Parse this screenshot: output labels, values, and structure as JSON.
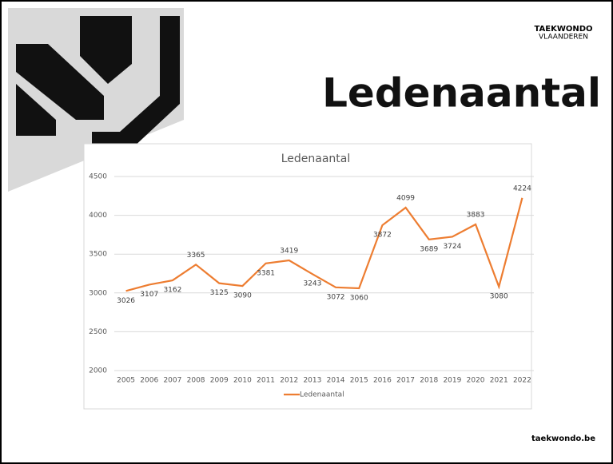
{
  "brand": {
    "line1": "TAEKWONDO",
    "line2": "VLAANDEREN"
  },
  "slide_title": "Ledenaantal",
  "footer": "taekwondo.be",
  "chart_data": {
    "type": "line",
    "title": "Ledenaantal",
    "categories": [
      "2005",
      "2006",
      "2007",
      "2008",
      "2009",
      "2010",
      "2011",
      "2012",
      "2013",
      "2014",
      "2015",
      "2016",
      "2017",
      "2018",
      "2019",
      "2020",
      "2021",
      "2022"
    ],
    "series": [
      {
        "name": "Ledenaantal",
        "color": "#ed7d31",
        "values": [
          3026,
          3107,
          3162,
          3365,
          3125,
          3090,
          3381,
          3419,
          3243,
          3072,
          3060,
          3872,
          4099,
          3689,
          3724,
          3883,
          3080,
          4224
        ]
      }
    ],
    "ylim": [
      2000,
      4500
    ],
    "yticks": [
      2000,
      2500,
      3000,
      3500,
      4000,
      4500
    ],
    "grid": true,
    "legend": "bottom"
  }
}
